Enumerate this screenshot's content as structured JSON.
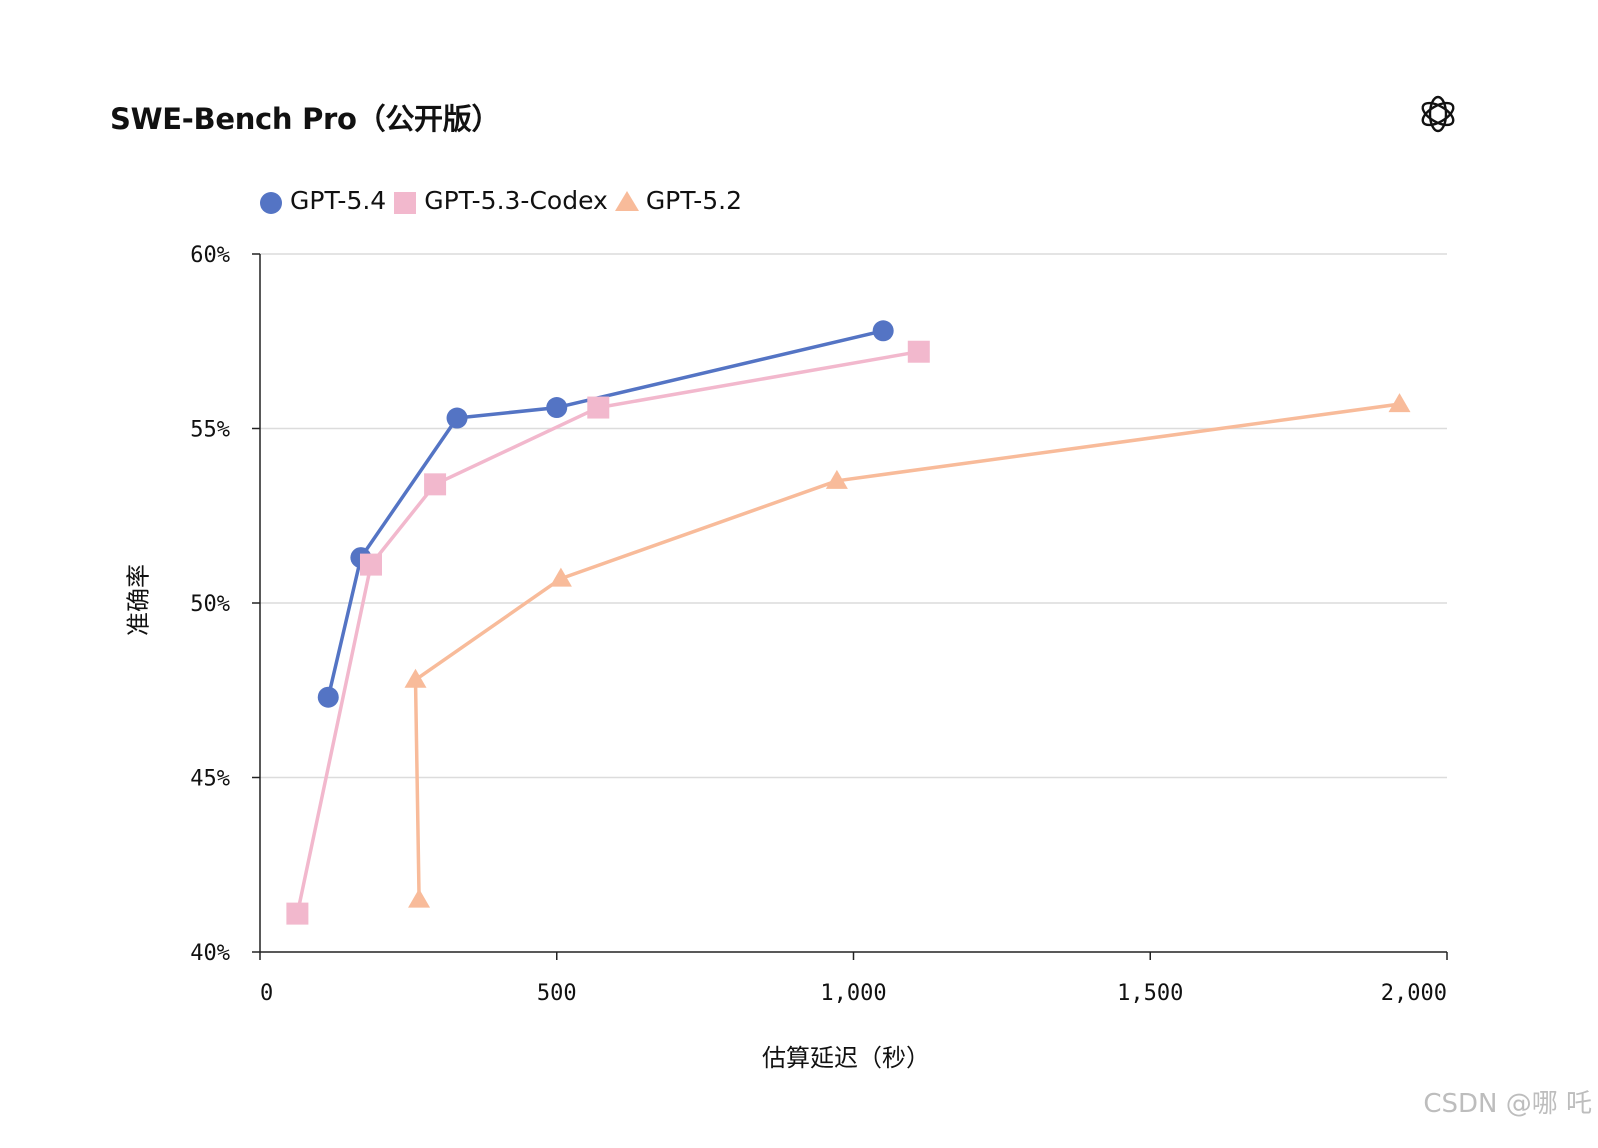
{
  "title": "SWE-Bench Pro（公开版）",
  "logo": {
    "icon": "openai-logo-icon"
  },
  "watermark": "CSDN @哪 吒",
  "chart_data": {
    "type": "line",
    "title": "SWE-Bench Pro（公开版）",
    "xlabel": "估算延迟（秒）",
    "ylabel": "准确率",
    "xlim": [
      0,
      2000
    ],
    "ylim": [
      40,
      60
    ],
    "x_ticks": [
      0,
      500,
      1000,
      1500,
      2000
    ],
    "x_tick_labels": [
      "0",
      "500",
      "1,000",
      "1,500",
      "2,000"
    ],
    "y_ticks": [
      40,
      45,
      50,
      55,
      60
    ],
    "y_tick_labels": [
      "40%",
      "45%",
      "50%",
      "55%",
      "60%"
    ],
    "grid": "horizontal",
    "legend_position": "top-left",
    "series": [
      {
        "name": "GPT-5.4",
        "color": "#5474c4",
        "marker": "circle",
        "x": [
          115,
          170,
          332,
          500,
          1050
        ],
        "y": [
          47.3,
          51.3,
          55.3,
          55.6,
          57.8
        ]
      },
      {
        "name": "GPT-5.3-Codex",
        "color": "#f2b8cd",
        "marker": "square",
        "x": [
          63,
          187,
          295,
          570,
          1110
        ],
        "y": [
          41.1,
          51.1,
          53.4,
          55.6,
          57.2
        ]
      },
      {
        "name": "GPT-5.2",
        "color": "#f8bb9a",
        "marker": "triangle",
        "x": [
          268,
          262,
          507,
          972,
          1920
        ],
        "y": [
          41.5,
          47.8,
          50.7,
          53.5,
          55.7
        ]
      }
    ]
  }
}
